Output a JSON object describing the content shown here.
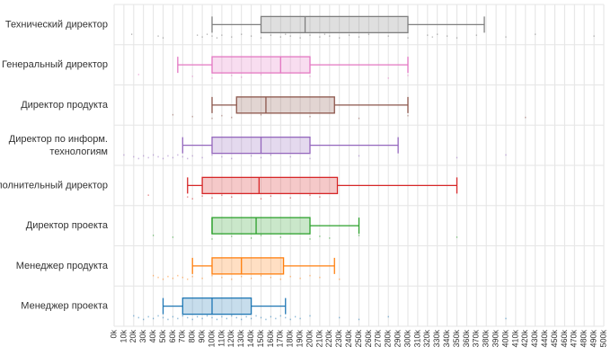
{
  "chart_data": {
    "type": "box",
    "orientation": "horizontal",
    "title": "",
    "xlabel": "",
    "ylabel": "",
    "xlim": [
      0,
      500000
    ],
    "grid": true,
    "x_ticks": [
      "0k",
      "10k",
      "20k",
      "30k",
      "40k",
      "50k",
      "60k",
      "70k",
      "80k",
      "90k",
      "100k",
      "110k",
      "120k",
      "130k",
      "140k",
      "150k",
      "160k",
      "170k",
      "180k",
      "190k",
      "200k",
      "210k",
      "220k",
      "230k",
      "240k",
      "250k",
      "260k",
      "270k",
      "280k",
      "290k",
      "300k",
      "310k",
      "320k",
      "330k",
      "340k",
      "350k",
      "360k",
      "370k",
      "380k",
      "390k",
      "400k",
      "410k",
      "420k",
      "430k",
      "440k",
      "450k",
      "460k",
      "470k",
      "480k",
      "490k",
      "500k"
    ],
    "series": [
      {
        "category": "Технический директор",
        "color": "#7f7f7f",
        "min": 100000,
        "q1": 150000,
        "median": 195000,
        "q3": 300000,
        "max": 378000,
        "points": [
          18000,
          45000,
          50000,
          85000,
          90000,
          95000,
          100000,
          105000,
          110000,
          120000,
          130000,
          140000,
          150000,
          160000,
          170000,
          175000,
          180000,
          190000,
          200000,
          210000,
          215000,
          220000,
          230000,
          240000,
          250000,
          260000,
          280000,
          300000,
          320000,
          325000,
          330000,
          340000,
          350000,
          370000,
          400000,
          430000,
          490000
        ]
      },
      {
        "category": "Генеральный директор",
        "color": "#e377c2",
        "min": 65000,
        "q1": 100000,
        "median": 170000,
        "q3": 200000,
        "max": 300000,
        "points": [
          25000,
          80000,
          100000,
          120000,
          130000,
          150000,
          200000,
          280000,
          300000
        ]
      },
      {
        "category": "Директор продукта",
        "color": "#8c564b",
        "min": 100000,
        "q1": 125000,
        "median": 155000,
        "q3": 225000,
        "max": 300000,
        "points": [
          60000,
          80000,
          100000,
          110000,
          120000,
          150000,
          200000,
          250000,
          300000,
          420000
        ]
      },
      {
        "category": "Директор по информ. технологиям",
        "color": "#9467bd",
        "min": 70000,
        "q1": 100000,
        "median": 150000,
        "q3": 200000,
        "max": 290000,
        "points": [
          10000,
          20000,
          25000,
          30000,
          35000,
          40000,
          45000,
          50000,
          55000,
          60000,
          65000,
          70000,
          75000,
          80000,
          90000,
          100000,
          110000,
          120000,
          140000,
          150000,
          160000,
          180000,
          200000,
          250000,
          350000,
          400000
        ]
      },
      {
        "category": "Исполнительный директор",
        "color": "#d62728",
        "min": 75000,
        "q1": 90000,
        "median": 148000,
        "q3": 228000,
        "max": 350000,
        "points": [
          35000,
          75000,
          80000,
          90000,
          100000,
          110000,
          120000,
          150000,
          160000,
          180000,
          200000,
          210000
        ]
      },
      {
        "category": "Директор проекта",
        "color": "#2ca02c",
        "min": 100000,
        "q1": 100000,
        "median": 145000,
        "q3": 200000,
        "max": 250000,
        "points": [
          40000,
          60000,
          100000,
          120000,
          140000,
          150000,
          170000,
          200000,
          210000,
          220000,
          250000,
          350000
        ]
      },
      {
        "category": "Менеджер продукта",
        "color": "#ff7f0e",
        "min": 80000,
        "q1": 100000,
        "median": 130000,
        "q3": 173000,
        "max": 225000,
        "points": [
          40000,
          45000,
          50000,
          55000,
          60000,
          65000,
          70000,
          75000,
          80000,
          90000,
          100000,
          110000,
          120000,
          130000,
          140000,
          150000,
          160000,
          170000,
          180000,
          190000,
          200000,
          210000,
          230000
        ]
      },
      {
        "category": "Менеджер проекта",
        "color": "#1f77b4",
        "min": 50000,
        "q1": 70000,
        "median": 100000,
        "q3": 140000,
        "max": 175000,
        "points": [
          20000,
          25000,
          30000,
          35000,
          40000,
          45000,
          50000,
          55000,
          60000,
          65000,
          70000,
          75000,
          80000,
          85000,
          90000,
          95000,
          100000,
          105000,
          110000,
          115000,
          120000,
          125000,
          130000,
          135000,
          140000,
          145000,
          150000,
          155000,
          160000,
          165000,
          170000,
          175000,
          180000,
          185000,
          190000,
          200000,
          230000,
          250000,
          280000,
          400000
        ]
      }
    ]
  }
}
